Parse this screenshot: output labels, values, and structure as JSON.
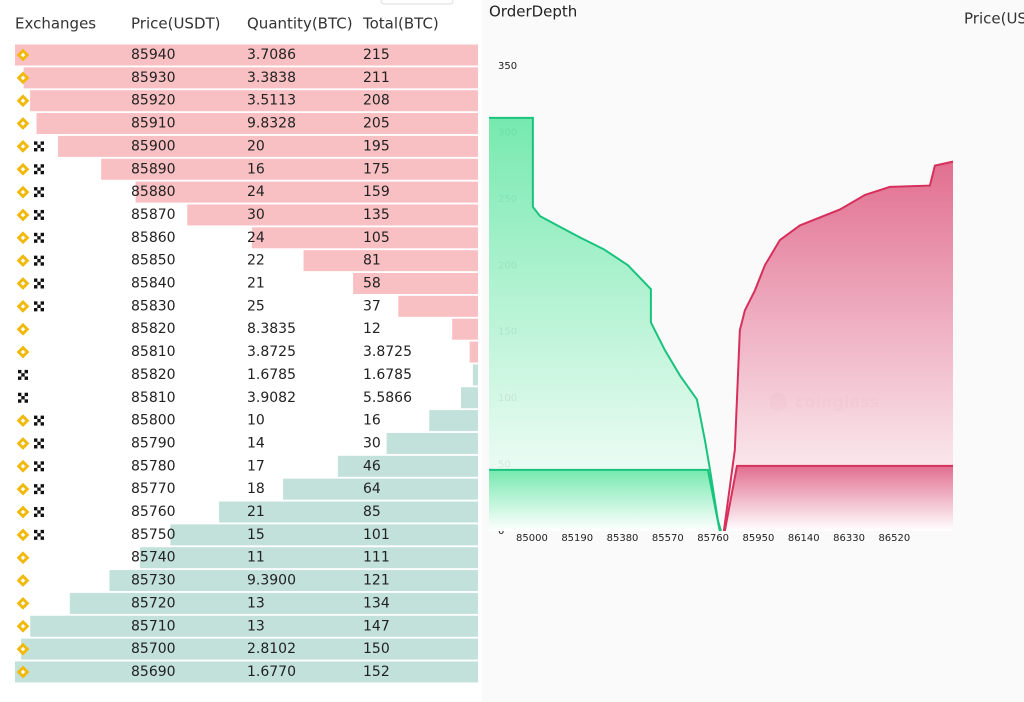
{
  "right_panel_header": "Price(US",
  "table": {
    "headers": [
      "Exchanges",
      "Price(USDT)",
      "Quantity(BTC)",
      "Total(BTC)"
    ],
    "rows": [
      {
        "side": "ask",
        "exchanges": [
          "binance"
        ],
        "price": 85940,
        "quantity": "3.7086",
        "total": 215
      },
      {
        "side": "ask",
        "exchanges": [
          "binance"
        ],
        "price": 85930,
        "quantity": "3.3838",
        "total": 211
      },
      {
        "side": "ask",
        "exchanges": [
          "binance"
        ],
        "price": 85920,
        "quantity": "3.5113",
        "total": 208
      },
      {
        "side": "ask",
        "exchanges": [
          "binance"
        ],
        "price": 85910,
        "quantity": "9.8328",
        "total": 205
      },
      {
        "side": "ask",
        "exchanges": [
          "binance",
          "okx"
        ],
        "price": 85900,
        "quantity": "20",
        "total": 195
      },
      {
        "side": "ask",
        "exchanges": [
          "binance",
          "okx"
        ],
        "price": 85890,
        "quantity": "16",
        "total": 175
      },
      {
        "side": "ask",
        "exchanges": [
          "binance",
          "okx"
        ],
        "price": 85880,
        "quantity": "24",
        "total": 159
      },
      {
        "side": "ask",
        "exchanges": [
          "binance",
          "okx"
        ],
        "price": 85870,
        "quantity": "30",
        "total": 135
      },
      {
        "side": "ask",
        "exchanges": [
          "binance",
          "okx"
        ],
        "price": 85860,
        "quantity": "24",
        "total": 105
      },
      {
        "side": "ask",
        "exchanges": [
          "binance",
          "okx"
        ],
        "price": 85850,
        "quantity": "22",
        "total": 81
      },
      {
        "side": "ask",
        "exchanges": [
          "binance",
          "okx"
        ],
        "price": 85840,
        "quantity": "21",
        "total": 58
      },
      {
        "side": "ask",
        "exchanges": [
          "binance",
          "okx"
        ],
        "price": 85830,
        "quantity": "25",
        "total": 37
      },
      {
        "side": "ask",
        "exchanges": [
          "binance"
        ],
        "price": 85820,
        "quantity": "8.3835",
        "total": 12
      },
      {
        "side": "ask",
        "exchanges": [
          "binance"
        ],
        "price": 85810,
        "quantity": "3.8725",
        "total": 3.8725
      },
      {
        "side": "bid",
        "exchanges": [
          "okx"
        ],
        "price": 85820,
        "quantity": "1.6785",
        "total": 1.6785
      },
      {
        "side": "bid",
        "exchanges": [
          "okx"
        ],
        "price": 85810,
        "quantity": "3.9082",
        "total": 5.5866
      },
      {
        "side": "bid",
        "exchanges": [
          "binance",
          "okx"
        ],
        "price": 85800,
        "quantity": "10",
        "total": 16
      },
      {
        "side": "bid",
        "exchanges": [
          "binance",
          "okx"
        ],
        "price": 85790,
        "quantity": "14",
        "total": 30
      },
      {
        "side": "bid",
        "exchanges": [
          "binance",
          "okx"
        ],
        "price": 85780,
        "quantity": "17",
        "total": 46
      },
      {
        "side": "bid",
        "exchanges": [
          "binance",
          "okx"
        ],
        "price": 85770,
        "quantity": "18",
        "total": 64
      },
      {
        "side": "bid",
        "exchanges": [
          "binance",
          "okx"
        ],
        "price": 85760,
        "quantity": "21",
        "total": 85
      },
      {
        "side": "bid",
        "exchanges": [
          "binance",
          "okx"
        ],
        "price": 85750,
        "quantity": "15",
        "total": 101
      },
      {
        "side": "bid",
        "exchanges": [
          "binance"
        ],
        "price": 85740,
        "quantity": "11",
        "total": 111
      },
      {
        "side": "bid",
        "exchanges": [
          "binance"
        ],
        "price": 85730,
        "quantity": "9.3900",
        "total": 121
      },
      {
        "side": "bid",
        "exchanges": [
          "binance"
        ],
        "price": 85720,
        "quantity": "13",
        "total": 134
      },
      {
        "side": "bid",
        "exchanges": [
          "binance"
        ],
        "price": 85710,
        "quantity": "13",
        "total": 147
      },
      {
        "side": "bid",
        "exchanges": [
          "binance"
        ],
        "price": 85700,
        "quantity": "2.8102",
        "total": 150
      },
      {
        "side": "bid",
        "exchanges": [
          "binance"
        ],
        "price": 85690,
        "quantity": "1.6770",
        "total": 152
      }
    ]
  },
  "depth_chart": {
    "type": "area",
    "title": "OrderDepth",
    "watermark": "coinglass",
    "xlim": [
      84820,
      86766
    ],
    "ylim": [
      0,
      350
    ],
    "xticks": [
      85000,
      85190,
      85380,
      85570,
      85760,
      85950,
      86140,
      86330,
      86520
    ],
    "yticks": [
      0,
      50,
      100,
      150,
      200,
      250,
      300,
      350
    ],
    "series": [
      {
        "side": "bid",
        "color": "#19c37d",
        "x": [
          84820,
          85004,
          85004,
          85034,
          85117,
          85201,
          85302,
          85403,
          85499,
          85499,
          85558,
          85621,
          85692,
          85726,
          85747,
          85780,
          85793
        ],
        "y": [
          311,
          311,
          244,
          237,
          229,
          221,
          212,
          200,
          182,
          157,
          136,
          117,
          99,
          68,
          46,
          8,
          0
        ]
      },
      {
        "side": "bid",
        "color": "#19c37d",
        "x": [
          84820,
          85738,
          85788
        ],
        "y": [
          46,
          46,
          0
        ]
      },
      {
        "side": "ask",
        "color": "#d6305c",
        "x": [
          85805,
          85851,
          85872,
          85893,
          85935,
          85977,
          86040,
          86124,
          86292,
          86397,
          86501,
          86669,
          86690,
          86766
        ],
        "y": [
          0,
          61,
          151,
          166,
          181,
          200,
          219,
          230,
          242,
          253,
          259,
          260,
          275,
          278
        ]
      },
      {
        "side": "ask",
        "color": "#d6305c",
        "x": [
          85809,
          85860,
          86766
        ],
        "y": [
          0,
          49,
          49
        ]
      }
    ]
  }
}
